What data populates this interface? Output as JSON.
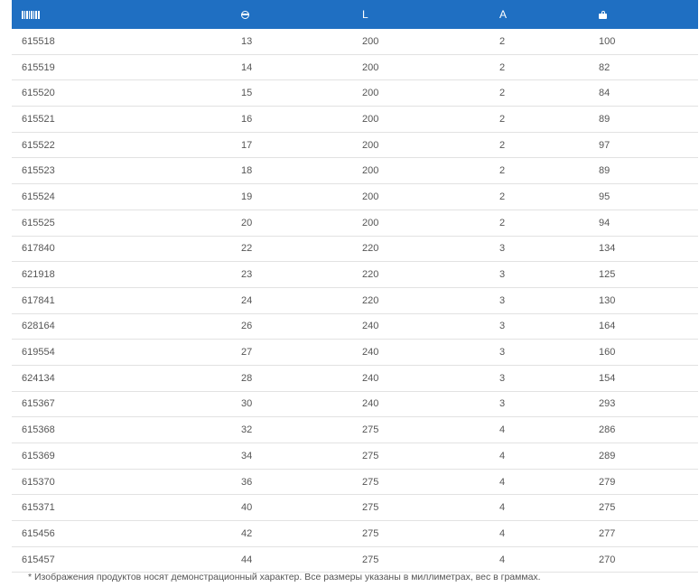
{
  "header": {
    "col1_icon": "barcode-icon",
    "col2_icon": "diameter-icon",
    "col3_label": "L",
    "col4_label": "A",
    "col5_icon": "weight-icon"
  },
  "rows": [
    {
      "code": "615518",
      "d": "13",
      "l": "200",
      "a": "2",
      "w": "100"
    },
    {
      "code": "615519",
      "d": "14",
      "l": "200",
      "a": "2",
      "w": "82"
    },
    {
      "code": "615520",
      "d": "15",
      "l": "200",
      "a": "2",
      "w": "84"
    },
    {
      "code": "615521",
      "d": "16",
      "l": "200",
      "a": "2",
      "w": "89"
    },
    {
      "code": "615522",
      "d": "17",
      "l": "200",
      "a": "2",
      "w": "97"
    },
    {
      "code": "615523",
      "d": "18",
      "l": "200",
      "a": "2",
      "w": "89"
    },
    {
      "code": "615524",
      "d": "19",
      "l": "200",
      "a": "2",
      "w": "95"
    },
    {
      "code": "615525",
      "d": "20",
      "l": "200",
      "a": "2",
      "w": "94"
    },
    {
      "code": "617840",
      "d": "22",
      "l": "220",
      "a": "3",
      "w": "134"
    },
    {
      "code": "621918",
      "d": "23",
      "l": "220",
      "a": "3",
      "w": "125"
    },
    {
      "code": "617841",
      "d": "24",
      "l": "220",
      "a": "3",
      "w": "130"
    },
    {
      "code": "628164",
      "d": "26",
      "l": "240",
      "a": "3",
      "w": "164"
    },
    {
      "code": "619554",
      "d": "27",
      "l": "240",
      "a": "3",
      "w": "160"
    },
    {
      "code": "624134",
      "d": "28",
      "l": "240",
      "a": "3",
      "w": "154"
    },
    {
      "code": "615367",
      "d": "30",
      "l": "240",
      "a": "3",
      "w": "293"
    },
    {
      "code": "615368",
      "d": "32",
      "l": "275",
      "a": "4",
      "w": "286"
    },
    {
      "code": "615369",
      "d": "34",
      "l": "275",
      "a": "4",
      "w": "289"
    },
    {
      "code": "615370",
      "d": "36",
      "l": "275",
      "a": "4",
      "w": "279"
    },
    {
      "code": "615371",
      "d": "40",
      "l": "275",
      "a": "4",
      "w": "275"
    },
    {
      "code": "615456",
      "d": "42",
      "l": "275",
      "a": "4",
      "w": "277"
    },
    {
      "code": "615457",
      "d": "44",
      "l": "275",
      "a": "4",
      "w": "270"
    }
  ],
  "footnote": "* Изображения продуктов носят демонстрационный характер. Все размеры указаны в миллиметрах, вес в граммах.",
  "colors": {
    "header_bg": "#1f6fc2",
    "row_border": "#e2e2e2",
    "text": "#555555"
  }
}
